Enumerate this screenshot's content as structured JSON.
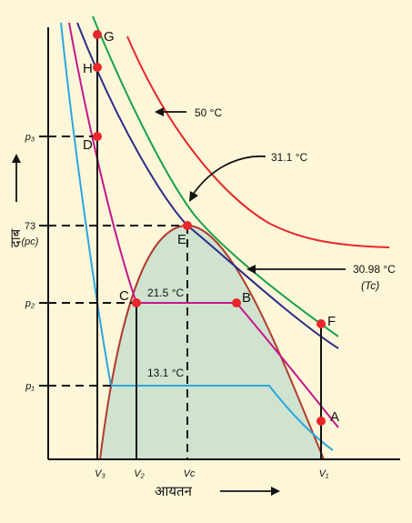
{
  "diagram": {
    "axes": {
      "y_title": "दाब",
      "x_title": "आयतन"
    },
    "pressure_ticks": {
      "p3": "p₃",
      "pc_value": "73",
      "pc": "(pc)",
      "p2": "p₂",
      "p1": "p₁"
    },
    "volume_ticks": {
      "v3": "V₃",
      "v2": "V₂",
      "vc": "Vc",
      "v1": "V₁"
    },
    "isotherms": {
      "t50": "50 °C",
      "t311": "31.1 °C",
      "t3098": "30.98 °C",
      "tc": "(Tc)",
      "t215": "21.5 °C",
      "t131": "13.1 °C"
    },
    "points": {
      "a": "A",
      "b": "B",
      "c": "C",
      "d": "D",
      "e": "E",
      "f": "F",
      "g": "G",
      "h": "H"
    },
    "colors": {
      "background": "#fdf6d8",
      "two_phase_region": "#cfe3cf",
      "dome": "#b03a2e",
      "isotherm_50": "#e8262b",
      "isotherm_31_1": "#1aa24a",
      "isotherm_30_98": "#2b2e8c",
      "isotherm_21_5": "#c4168c",
      "isotherm_13_1": "#2ba6de",
      "points": "#e8262b"
    }
  }
}
